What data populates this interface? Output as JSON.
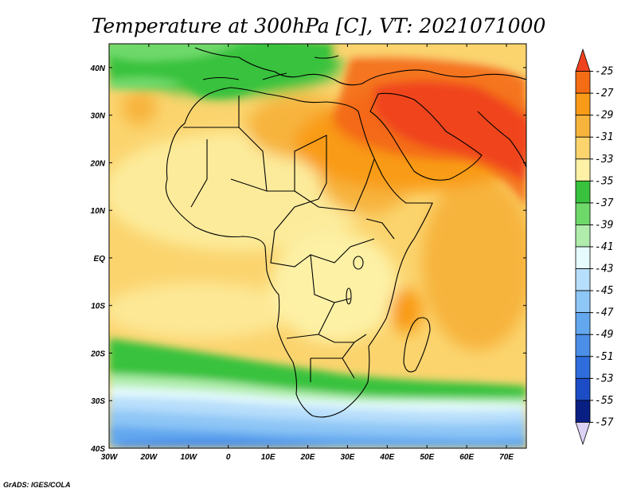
{
  "title": "Temperature at 300hPa [C], VT: 2021071000",
  "credit": "GrADS: IGES/COLA",
  "lon_ticks": [
    "30W",
    "20W",
    "10W",
    "0",
    "10E",
    "20E",
    "30E",
    "40E",
    "50E",
    "60E",
    "70E"
  ],
  "lat_ticks": [
    "40N",
    "30N",
    "20N",
    "10N",
    "EQ",
    "10S",
    "20S",
    "30S",
    "40S"
  ],
  "colorbar": {
    "labels": [
      "-25",
      "-27",
      "-29",
      "-31",
      "-33",
      "-35",
      "-37",
      "-39",
      "-41",
      "-43",
      "-45",
      "-47",
      "-49",
      "-51",
      "-53",
      "-55",
      "-57"
    ],
    "colors": [
      "#f0421e",
      "#f46c14",
      "#f99b18",
      "#f7b43c",
      "#fbd46e",
      "#fdf1a6",
      "#38c23d",
      "#6ed96a",
      "#b0edac",
      "#e5fbfd",
      "#b7defb",
      "#8ec6f6",
      "#63a8ef",
      "#4a8ee8",
      "#2f6ddc",
      "#1c4dc6",
      "#0a1f84",
      "#dcd2f5"
    ]
  },
  "chart_data": {
    "type": "heatmap",
    "variable": "Temperature at 300hPa",
    "units": "C",
    "valid_time": "2021071000",
    "lon_range": [
      -30,
      75
    ],
    "lat_range": [
      -40,
      45
    ],
    "color_levels": [
      -57,
      -55,
      -53,
      -51,
      -49,
      -47,
      -45,
      -43,
      -41,
      -39,
      -37,
      -35,
      -33,
      -31,
      -29,
      -27,
      -25
    ]
  }
}
